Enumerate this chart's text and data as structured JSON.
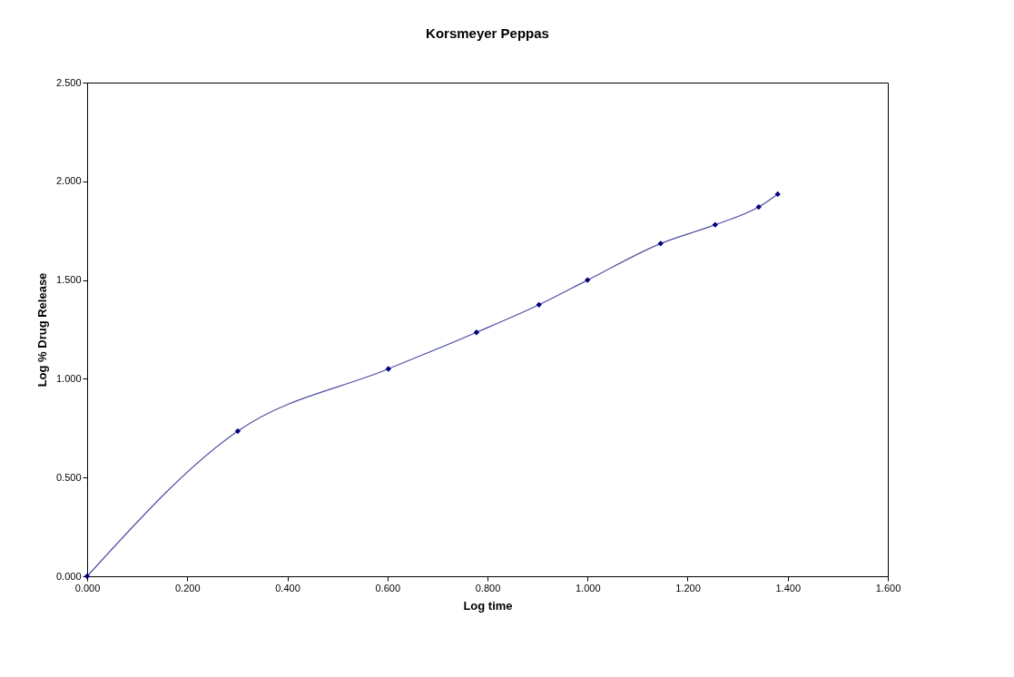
{
  "chart_data": {
    "type": "line",
    "title": "Korsmeyer Peppas",
    "xlabel": "Log time",
    "ylabel": "Log % Drug Release",
    "x": [
      0,
      0.301,
      0.602,
      0.778,
      0.903,
      1.0,
      1.146,
      1.255,
      1.342,
      1.38
    ],
    "series": [
      {
        "color": "#000080",
        "values": [
          0,
          0.735,
          1.05,
          1.235,
          1.375,
          1.5,
          1.685,
          1.78,
          1.87,
          1.935
        ]
      }
    ],
    "xlim": [
      0,
      1.6
    ],
    "ylim": [
      0,
      2.5
    ],
    "xticks": [
      {
        "value": 0,
        "label": "0.000"
      },
      {
        "value": 0.2,
        "label": "0.200"
      },
      {
        "value": 0.4,
        "label": "0.400"
      },
      {
        "value": 0.6,
        "label": "0.600"
      },
      {
        "value": 0.8,
        "label": "0.800"
      },
      {
        "value": 1,
        "label": "1.000"
      },
      {
        "value": 1.2,
        "label": "1.200"
      },
      {
        "value": 1.4,
        "label": "1.400"
      },
      {
        "value": 1.6,
        "label": "1.600"
      }
    ],
    "yticks": [
      {
        "value": 0,
        "label": "0.000"
      },
      {
        "value": 0.5,
        "label": "0.500"
      },
      {
        "value": 1,
        "label": "1.000"
      },
      {
        "value": 1.5,
        "label": "1.500"
      },
      {
        "value": 2,
        "label": "2.000"
      },
      {
        "value": 2.5,
        "label": "2.500"
      }
    ],
    "marker": "diamond",
    "line_style": "solid",
    "grid": false
  }
}
